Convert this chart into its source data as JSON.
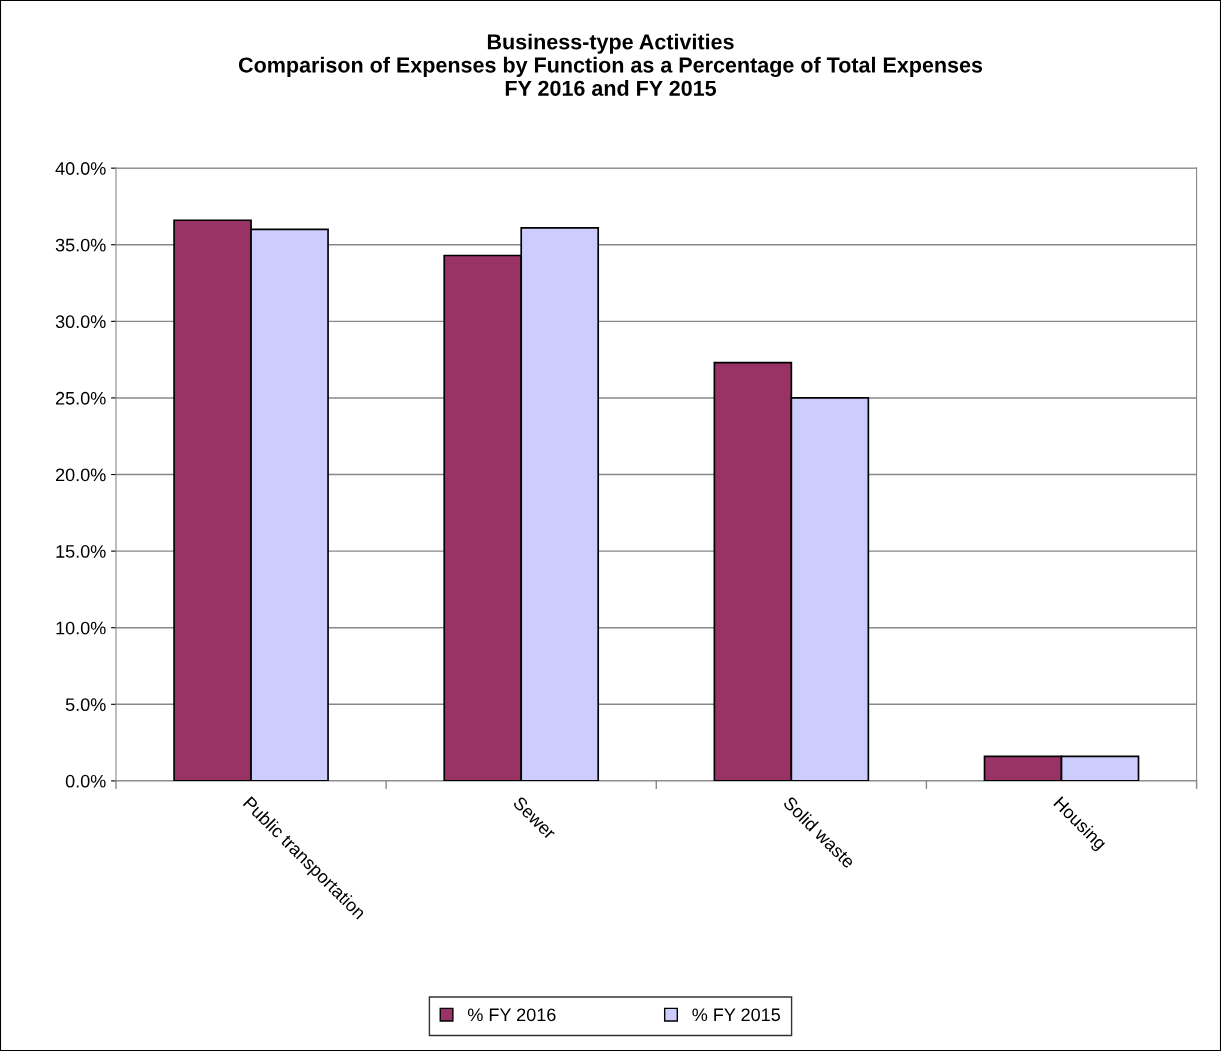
{
  "chart_data": {
    "type": "bar",
    "title": "Business-type Activities\nComparison of Expenses by Function as a Percentage of Total Expenses\nFY 2016 and FY 2015",
    "categories": [
      "Public transportation",
      "Sewer",
      "Solid waste",
      "Housing"
    ],
    "series": [
      {
        "name": "% FY 2016",
        "color": "#993366",
        "values": [
          36.6,
          34.3,
          27.3,
          1.6
        ]
      },
      {
        "name": "% FY 2015",
        "color": "#ccccff",
        "values": [
          36.0,
          36.1,
          25.0,
          1.6
        ]
      }
    ],
    "ylim": [
      0,
      40
    ],
    "yticks": [
      {
        "value": 0,
        "label": "0.0%"
      },
      {
        "value": 5,
        "label": "5.0%"
      },
      {
        "value": 10,
        "label": "10.0%"
      },
      {
        "value": 15,
        "label": "15.0%"
      },
      {
        "value": 20,
        "label": "20.0%"
      },
      {
        "value": 25,
        "label": "25.0%"
      },
      {
        "value": 30,
        "label": "30.0%"
      },
      {
        "value": 35,
        "label": "35.0%"
      },
      {
        "value": 40,
        "label": "40.0%"
      }
    ],
    "grid": "y",
    "legend": "bottom"
  }
}
